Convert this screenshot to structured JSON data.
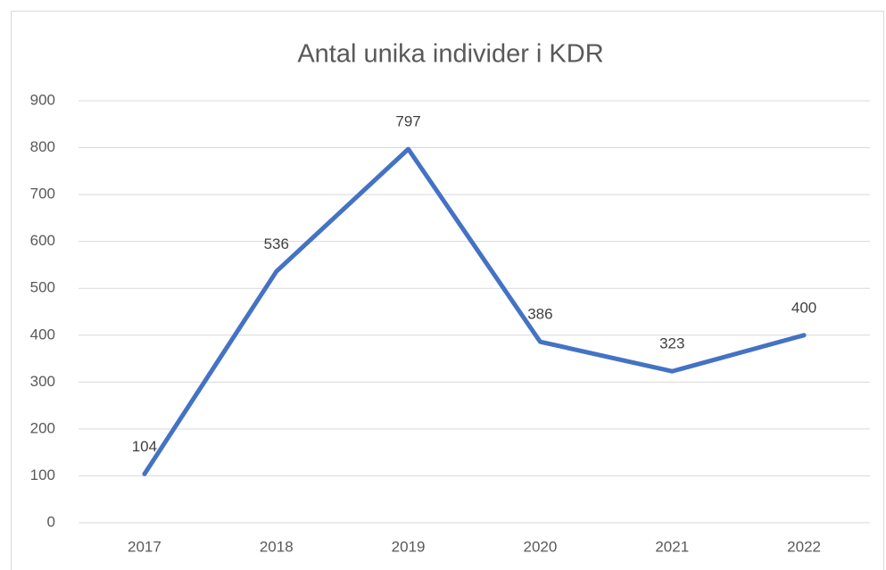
{
  "chart_data": {
    "type": "line",
    "title": "Antal unika individer i KDR",
    "categories": [
      "2017",
      "2018",
      "2019",
      "2020",
      "2021",
      "2022"
    ],
    "values": [
      104,
      536,
      797,
      386,
      323,
      400
    ],
    "color": "#4472c4",
    "ylim": [
      0,
      900
    ],
    "yticks": [
      0,
      100,
      200,
      300,
      400,
      500,
      600,
      700,
      800,
      900
    ],
    "grid": true
  }
}
